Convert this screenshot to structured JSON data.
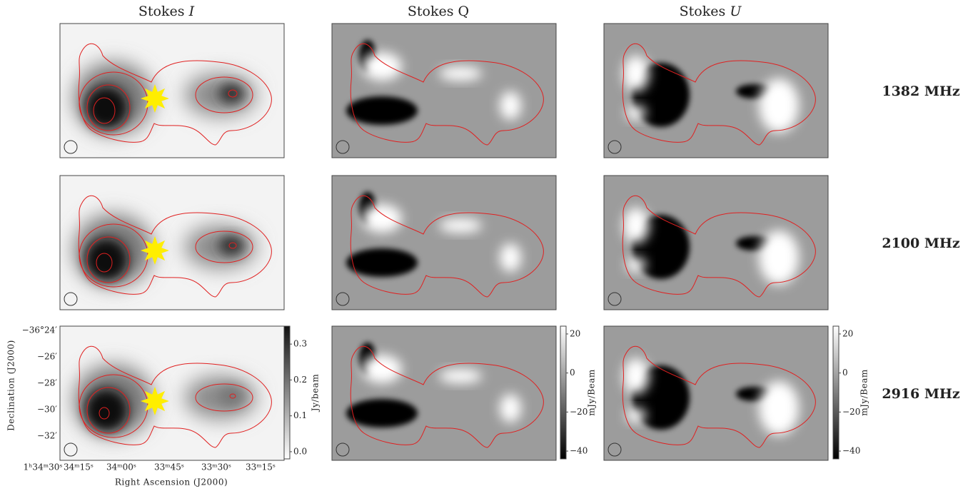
{
  "columns": [
    {
      "prefix": "Stokes",
      "symbol": "I"
    },
    {
      "prefix": "Stokes",
      "symbol": "Q"
    },
    {
      "prefix": "Stokes",
      "symbol": "U"
    }
  ],
  "rows": [
    "1382 MHz",
    "2100 MHz",
    "2916 MHz"
  ],
  "axes": {
    "ylabel": "Declination (J2000)",
    "xlabel": "Right Ascension (J2000)",
    "yticks": [
      "−36°24′",
      "−26′",
      "−28′",
      "−30′",
      "−32′"
    ],
    "xticks": [
      "1ʰ34ᵐ30ˢ",
      "34ᵐ15ˢ",
      "34ᵐ00ˢ",
      "33ᵐ45ˢ",
      "33ᵐ30ˢ",
      "33ᵐ15ˢ"
    ]
  },
  "colorbars": [
    {
      "label": "Jy/beam",
      "clim": [
        -0.02,
        0.35
      ],
      "ticks": [
        0.3,
        0.2,
        0.1,
        {
          "value": 0,
          "label": "0.0"
        }
      ]
    },
    {
      "label": "mJy/Beam",
      "clim": [
        -44,
        24
      ],
      "ticks": [
        20,
        0,
        {
          "value": -20,
          "label": "−20"
        },
        {
          "value": -40,
          "label": "−40"
        }
      ]
    },
    {
      "label": "mJy/Beam",
      "clim": [
        -44,
        24
      ],
      "ticks": [
        20,
        0,
        {
          "value": -20,
          "label": "−20"
        },
        {
          "value": -40,
          "label": "−40"
        }
      ]
    }
  ]
}
